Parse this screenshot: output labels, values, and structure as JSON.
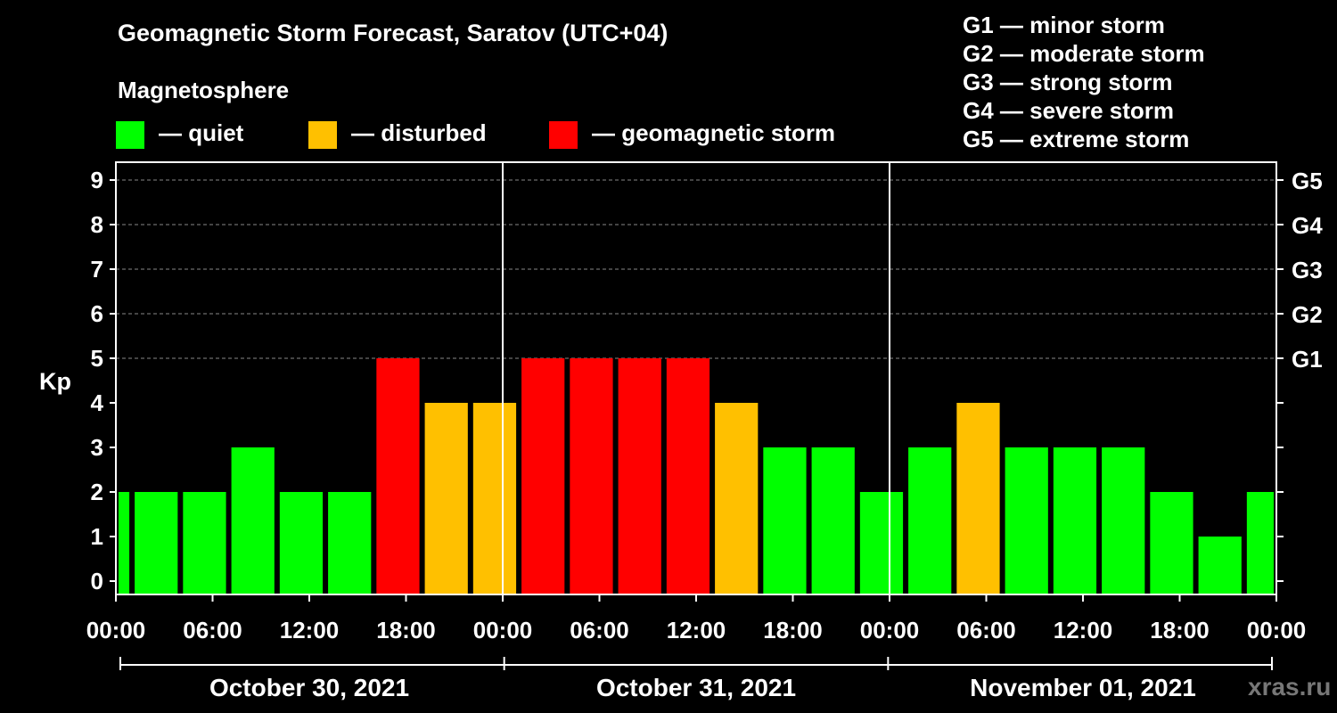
{
  "title": "Geomagnetic Storm Forecast, Saratov (UTC+04)",
  "legend": {
    "heading": "Magnetosphere",
    "items": [
      {
        "label": "— quiet",
        "color": "#00ff00"
      },
      {
        "label": "— disturbed",
        "color": "#ffc000"
      },
      {
        "label": "— geomagnetic storm",
        "color": "#ff0000"
      }
    ]
  },
  "storm_scale": [
    "G1 — minor storm",
    "G2 — moderate storm",
    "G3 — strong storm",
    "G4 — severe storm",
    "G5 — extreme storm"
  ],
  "watermark": "xras.ru",
  "chart_data": {
    "type": "bar",
    "ylabel": "Kp",
    "ylim": [
      0,
      9
    ],
    "yticks": [
      "0",
      "1",
      "2",
      "3",
      "4",
      "5",
      "6",
      "7",
      "8",
      "9"
    ],
    "right_ticks": [
      {
        "value": 5,
        "label": "G1"
      },
      {
        "value": 6,
        "label": "G2"
      },
      {
        "value": 7,
        "label": "G3"
      },
      {
        "value": 8,
        "label": "G4"
      },
      {
        "value": 9,
        "label": "G5"
      }
    ],
    "xticks": [
      "00:00",
      "06:00",
      "12:00",
      "18:00",
      "00:00",
      "06:00",
      "12:00",
      "18:00",
      "00:00",
      "06:00",
      "12:00",
      "18:00",
      "00:00"
    ],
    "dates": [
      "October 30, 2021",
      "October 31, 2021",
      "November 01, 2021"
    ],
    "grid": "dashed horizontal at Kp 9, 8, 7, 6, 5",
    "colors": {
      "quiet": "#00ff00",
      "disturbed": "#ffc000",
      "storm": "#ff0000"
    },
    "bars": [
      {
        "start": "Oct 30 00:00",
        "end": "Oct 30 01:00",
        "kp": 2,
        "level": "quiet"
      },
      {
        "start": "Oct 30 01:00",
        "end": "Oct 30 04:00",
        "kp": 2,
        "level": "quiet"
      },
      {
        "start": "Oct 30 04:00",
        "end": "Oct 30 07:00",
        "kp": 2,
        "level": "quiet"
      },
      {
        "start": "Oct 30 07:00",
        "end": "Oct 30 10:00",
        "kp": 3,
        "level": "quiet"
      },
      {
        "start": "Oct 30 10:00",
        "end": "Oct 30 13:00",
        "kp": 2,
        "level": "quiet"
      },
      {
        "start": "Oct 30 13:00",
        "end": "Oct 30 16:00",
        "kp": 2,
        "level": "quiet"
      },
      {
        "start": "Oct 30 16:00",
        "end": "Oct 30 19:00",
        "kp": 5,
        "level": "storm"
      },
      {
        "start": "Oct 30 19:00",
        "end": "Oct 30 22:00",
        "kp": 4,
        "level": "disturbed"
      },
      {
        "start": "Oct 30 22:00",
        "end": "Oct 31 01:00",
        "kp": 4,
        "level": "disturbed"
      },
      {
        "start": "Oct 31 01:00",
        "end": "Oct 31 04:00",
        "kp": 5,
        "level": "storm"
      },
      {
        "start": "Oct 31 04:00",
        "end": "Oct 31 07:00",
        "kp": 5,
        "level": "storm"
      },
      {
        "start": "Oct 31 07:00",
        "end": "Oct 31 10:00",
        "kp": 5,
        "level": "storm"
      },
      {
        "start": "Oct 31 10:00",
        "end": "Oct 31 13:00",
        "kp": 5,
        "level": "storm"
      },
      {
        "start": "Oct 31 13:00",
        "end": "Oct 31 16:00",
        "kp": 4,
        "level": "disturbed"
      },
      {
        "start": "Oct 31 16:00",
        "end": "Oct 31 19:00",
        "kp": 3,
        "level": "quiet"
      },
      {
        "start": "Oct 31 19:00",
        "end": "Oct 31 22:00",
        "kp": 3,
        "level": "quiet"
      },
      {
        "start": "Oct 31 22:00",
        "end": "Nov 01 01:00",
        "kp": 2,
        "level": "quiet"
      },
      {
        "start": "Nov 01 01:00",
        "end": "Nov 01 04:00",
        "kp": 3,
        "level": "quiet"
      },
      {
        "start": "Nov 01 04:00",
        "end": "Nov 01 07:00",
        "kp": 4,
        "level": "disturbed"
      },
      {
        "start": "Nov 01 07:00",
        "end": "Nov 01 10:00",
        "kp": 3,
        "level": "quiet"
      },
      {
        "start": "Nov 01 10:00",
        "end": "Nov 01 13:00",
        "kp": 3,
        "level": "quiet"
      },
      {
        "start": "Nov 01 13:00",
        "end": "Nov 01 16:00",
        "kp": 3,
        "level": "quiet"
      },
      {
        "start": "Nov 01 16:00",
        "end": "Nov 01 19:00",
        "kp": 2,
        "level": "quiet"
      },
      {
        "start": "Nov 01 19:00",
        "end": "Nov 01 22:00",
        "kp": 1,
        "level": "quiet"
      },
      {
        "start": "Nov 01 22:00",
        "end": "Nov 02 00:00",
        "kp": 2,
        "level": "quiet"
      }
    ]
  }
}
